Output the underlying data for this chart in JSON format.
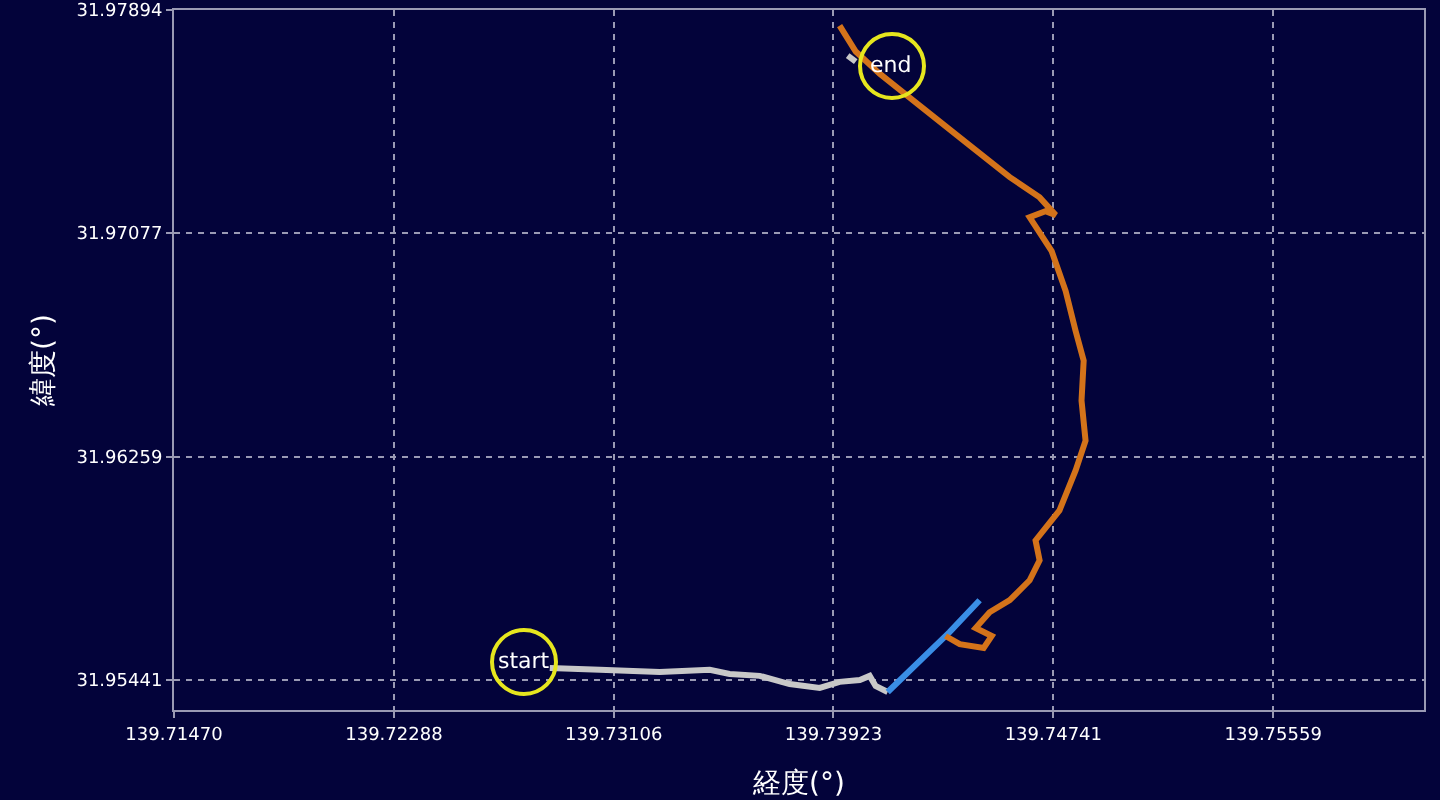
{
  "chart_data": {
    "type": "line",
    "xlabel": "経度(°)",
    "ylabel": "緯度(°)",
    "xlim": [
      139.7147,
      139.7612
    ],
    "ylim": [
      31.95331,
      31.97894
    ],
    "xticks": [
      {
        "value": 139.7147,
        "label": "139.71470"
      },
      {
        "value": 139.72288,
        "label": "139.72288"
      },
      {
        "value": 139.73106,
        "label": "139.73106"
      },
      {
        "value": 139.73923,
        "label": "139.73923"
      },
      {
        "value": 139.74741,
        "label": "139.74741"
      },
      {
        "value": 139.75559,
        "label": "139.75559"
      }
    ],
    "yticks": [
      {
        "value": 31.95441,
        "label": "31.95441"
      },
      {
        "value": 31.96259,
        "label": "31.96259"
      },
      {
        "value": 31.97077,
        "label": "31.97077"
      },
      {
        "value": 31.97894,
        "label": "31.97894"
      }
    ],
    "grid": true,
    "marker": "none",
    "line_style": "solid",
    "series": [
      {
        "color": "#c8c8c8",
        "x": [
          139.72868,
          139.73054,
          139.73277,
          139.73463,
          139.73537,
          139.73649,
          139.7376,
          139.73872,
          139.73946,
          139.74021,
          139.74058,
          139.7408,
          139.74125
        ],
        "values": [
          31.95485,
          31.95478,
          31.9547,
          31.95478,
          31.95463,
          31.95456,
          31.95426,
          31.95412,
          31.95434,
          31.95441,
          31.95456,
          31.95419,
          31.95397
        ]
      },
      {
        "color": "#3a8ee6",
        "x": [
          139.74125,
          139.74355,
          139.74467
        ],
        "values": [
          31.95397,
          31.95616,
          31.95733
        ]
      },
      {
        "color": "#d4731a",
        "x": [
          139.7434,
          139.74393,
          139.74482,
          139.74512,
          139.74452,
          139.74504,
          139.74579,
          139.74653,
          139.7469,
          139.74675,
          139.74764,
          139.74824,
          139.74861,
          139.74846,
          139.74854,
          139.74824,
          139.74787,
          139.74735,
          139.74653,
          139.74712,
          139.7475,
          139.7469,
          139.74579,
          139.7443,
          139.74244,
          139.74095,
          139.74006,
          139.73946
        ],
        "values": [
          31.95602,
          31.95572,
          31.95558,
          31.95602,
          31.95631,
          31.95689,
          31.95733,
          31.95806,
          31.95879,
          31.95952,
          31.96062,
          31.96208,
          31.96317,
          31.96464,
          31.9661,
          31.96719,
          31.96865,
          31.97011,
          31.97135,
          31.97157,
          31.97143,
          31.97208,
          31.97282,
          31.97398,
          31.97544,
          31.97661,
          31.97742,
          31.97837
        ]
      },
      {
        "color": "#c8c8c8",
        "x": [
          139.73976,
          139.74006
        ],
        "values": [
          31.97727,
          31.97705
        ]
      }
    ],
    "annotations": [
      {
        "text": "start",
        "x": 139.72771,
        "y": 31.95507
      },
      {
        "text": "end",
        "x": 139.7414,
        "y": 31.97691
      }
    ]
  }
}
